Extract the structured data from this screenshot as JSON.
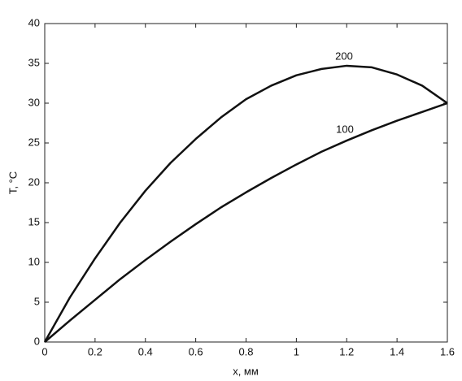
{
  "chart_data": {
    "type": "line",
    "x_label": "x, мм",
    "y_label": "T, °C",
    "x": [
      0,
      0.1,
      0.2,
      0.3,
      0.4,
      0.5,
      0.6,
      0.7,
      0.8,
      0.9,
      1,
      1.1,
      1.2,
      1.3,
      1.4,
      1.5,
      1.6
    ],
    "series": [
      {
        "name": "200",
        "color": "#111111",
        "values": [
          0,
          5.6,
          10.5,
          15,
          19,
          22.5,
          25.5,
          28.2,
          30.5,
          32.2,
          33.5,
          34.3,
          34.7,
          34.5,
          33.6,
          32.2,
          30
        ]
      },
      {
        "name": "100",
        "color": "#111111",
        "values": [
          0,
          2.7,
          5.3,
          7.9,
          10.3,
          12.6,
          14.8,
          16.9,
          18.8,
          20.6,
          22.3,
          23.9,
          25.3,
          26.6,
          27.8,
          28.9,
          30
        ]
      }
    ],
    "xlim": [
      0,
      1.6
    ],
    "xticks": [
      0,
      0.2,
      0.4,
      0.6,
      0.8,
      1,
      1.2,
      1.4,
      1.6
    ],
    "ylim": [
      0,
      40
    ],
    "yticks": [
      0,
      5,
      10,
      15,
      20,
      25,
      30,
      35,
      40
    ],
    "grid": false
  }
}
